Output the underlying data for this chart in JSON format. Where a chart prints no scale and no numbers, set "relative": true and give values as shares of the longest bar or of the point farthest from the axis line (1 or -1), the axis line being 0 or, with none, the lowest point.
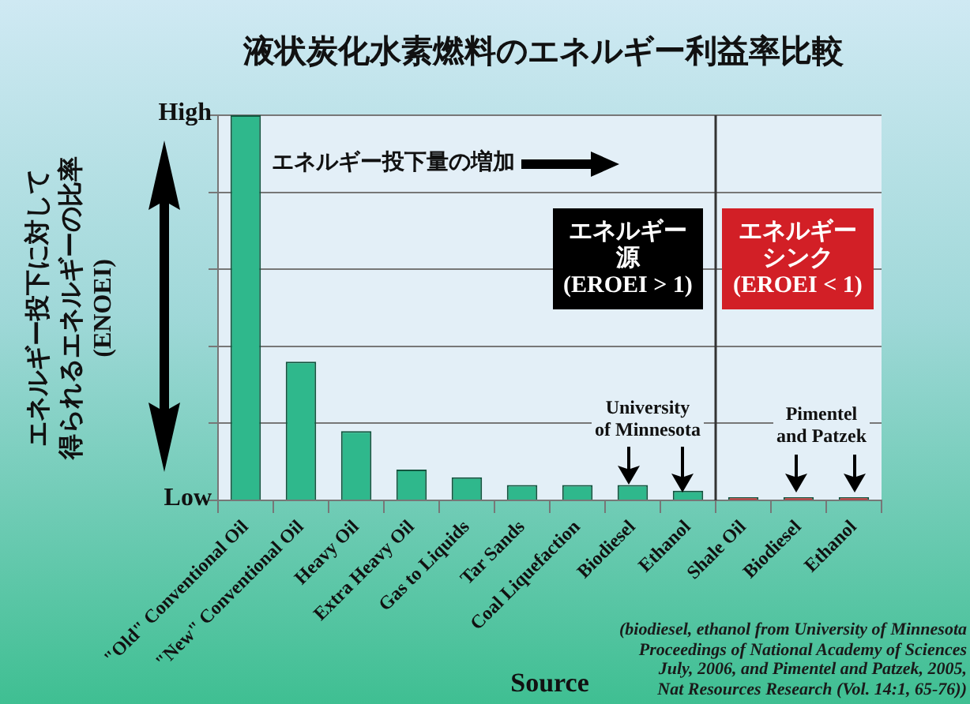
{
  "chart_data": {
    "type": "bar",
    "title": "液状炭化水素燃料のエネルギー利益率比較",
    "xlabel": "Source",
    "ylabel": "エネルギー投下に対して得られるエネルギーの比率(ENOEI)",
    "categories": [
      "\"Old\" Conventional Oil",
      "\"New\" Conventional Oil",
      "Heavy Oil",
      "Extra Heavy Oil",
      "Gas to Liquids",
      "Tar Sands",
      "Coal Liquefaction",
      "Biodiesel",
      "Ethanol",
      "Shale Oil",
      "Biodiesel",
      "Ethanol"
    ],
    "values": [
      1.0,
      0.36,
      0.18,
      0.08,
      0.06,
      0.04,
      0.04,
      0.04,
      0.025,
      0.008,
      0.008,
      0.008
    ],
    "colors": [
      "#2fb88c",
      "#2fb88c",
      "#2fb88c",
      "#2fb88c",
      "#2fb88c",
      "#2fb88c",
      "#2fb88c",
      "#2fb88c",
      "#2fb88c",
      "#d42a2a",
      "#d42a2a",
      "#d42a2a"
    ],
    "relative": true,
    "grid": "y",
    "annotations": [
      "High",
      "Low",
      "エネルギー投下量の増加",
      "エネルギー源(EROEI > 1)",
      "エネルギーシンク(EROEI < 1)",
      "University\nof Minnesota",
      "Pimentel\nand Patzek",
      "(biodiesel, ethanol from University of Minnesota\nProceedings of National Academy of Sciences\nJuly, 2006, and Pimentel and Patzek, 2005,\nNat Resources Research (Vol. 14:1, 65-76))"
    ]
  }
}
